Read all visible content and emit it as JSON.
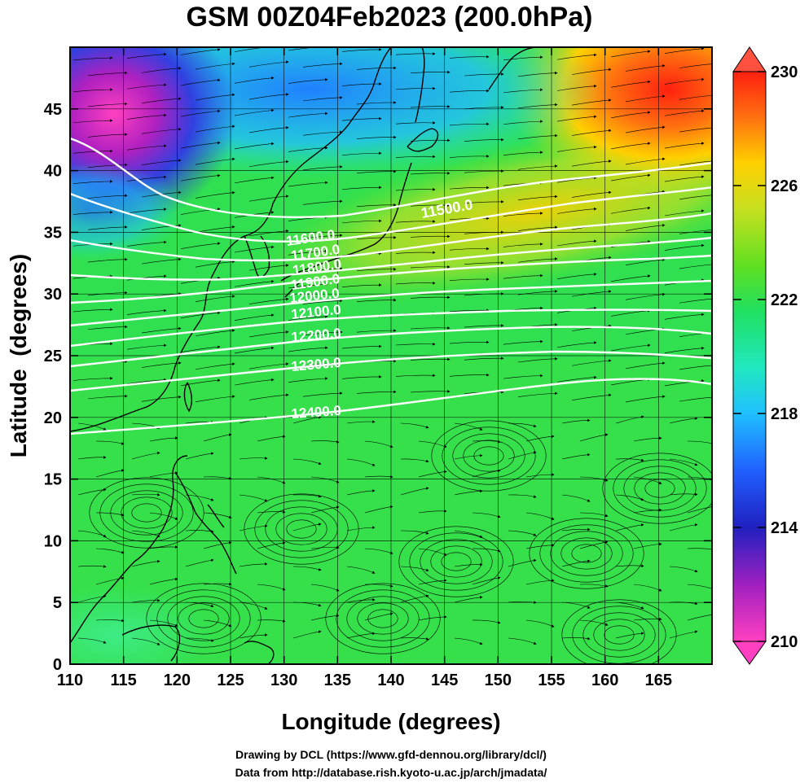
{
  "title": "GSM 00Z04Feb2023 (200.0hPa)",
  "x_axis": {
    "label": "Longitude (degrees)",
    "ticks": [
      "110",
      "115",
      "120",
      "125",
      "130",
      "135",
      "140",
      "145",
      "150",
      "155",
      "160",
      "165"
    ],
    "range": [
      110,
      170
    ]
  },
  "y_axis": {
    "label": "Latitude  (degrees)",
    "ticks": [
      "0",
      "5",
      "10",
      "15",
      "20",
      "25",
      "30",
      "35",
      "40",
      "45"
    ],
    "range": [
      0,
      50
    ]
  },
  "colorbar": {
    "ticks": [
      "210",
      "214",
      "218",
      "222",
      "226",
      "230"
    ],
    "range": [
      210,
      230
    ],
    "colors": [
      "#ff40c0",
      "#a020c0",
      "#2020c0",
      "#2060ff",
      "#20c0ff",
      "#20e8c0",
      "#20e060",
      "#60e020",
      "#c8e020",
      "#ffd000",
      "#ff7010",
      "#ff2010"
    ]
  },
  "contours": [
    {
      "label": "11500.0"
    },
    {
      "label": "11600.0"
    },
    {
      "label": "11700.0"
    },
    {
      "label": "11800.0"
    },
    {
      "label": "11900.0"
    },
    {
      "label": "12000.0"
    },
    {
      "label": "12100.0"
    },
    {
      "label": "12200.0"
    },
    {
      "label": "12300.0"
    },
    {
      "label": "12400.0"
    }
  ],
  "credits": {
    "line1": "Drawing by DCL (https://www.gfd-dennou.org/library/dcl/)",
    "line2": "Data from http://database.rish.kyoto-u.ac.jp/arch/jmadata/"
  }
}
